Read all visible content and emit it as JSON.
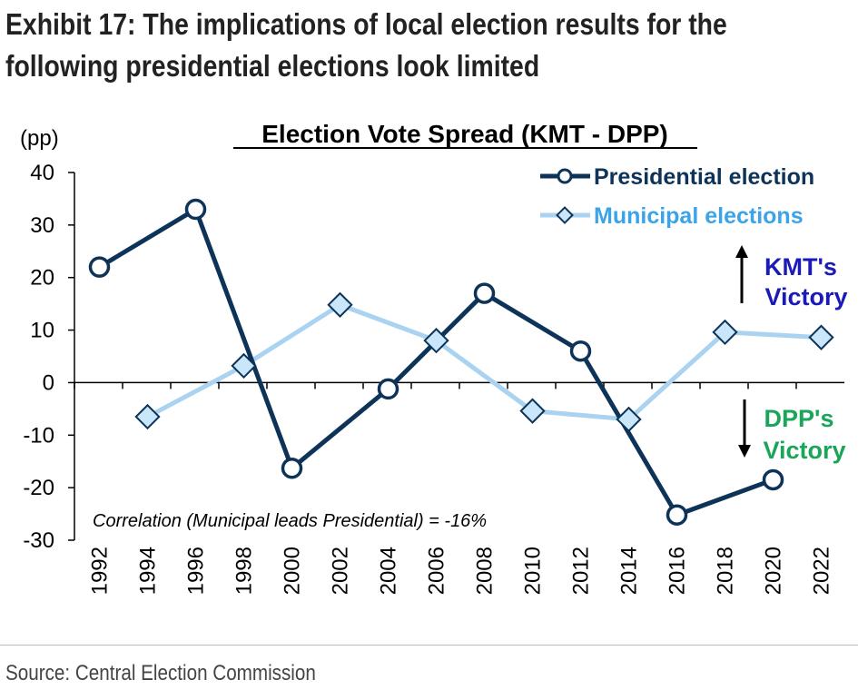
{
  "exhibit": {
    "title_line1": "Exhibit 17: The implications of local election results for the",
    "title_line2": "following presidential elections look limited",
    "source": "Source: Central Election Commission"
  },
  "chart_data": {
    "type": "line",
    "title": "Election Vote Spread (KMT - DPP)",
    "ylabel": "(pp)",
    "xlabel": "",
    "ylim": [
      -30,
      40
    ],
    "yticks": [
      40,
      30,
      20,
      10,
      0,
      -10,
      -20,
      -30
    ],
    "categories": [
      "1992",
      "1994",
      "1996",
      "1998",
      "2000",
      "2002",
      "2004",
      "2006",
      "2008",
      "2010",
      "2012",
      "2014",
      "2016",
      "2018",
      "2020",
      "2022"
    ],
    "legend_position": "top-right",
    "series": [
      {
        "name": "Presidential election",
        "color": "#0d3358",
        "marker": "circle",
        "points": [
          {
            "x": "1992",
            "y": 22
          },
          {
            "x": "1996",
            "y": 33
          },
          {
            "x": "2000",
            "y": -16.3
          },
          {
            "x": "2004",
            "y": -1.2
          },
          {
            "x": "2008",
            "y": 17
          },
          {
            "x": "2012",
            "y": 6
          },
          {
            "x": "2016",
            "y": -25.2
          },
          {
            "x": "2020",
            "y": -18.5
          }
        ]
      },
      {
        "name": "Municipal elections",
        "color": "#a9d3f0",
        "marker": "diamond",
        "points": [
          {
            "x": "1994",
            "y": -6.5
          },
          {
            "x": "1998",
            "y": 3.2
          },
          {
            "x": "2002",
            "y": 14.8
          },
          {
            "x": "2006",
            "y": 8
          },
          {
            "x": "2010",
            "y": -5.4
          },
          {
            "x": "2014",
            "y": -7
          },
          {
            "x": "2018",
            "y": 9.6
          },
          {
            "x": "2022",
            "y": 8.6
          }
        ]
      }
    ],
    "annotations": {
      "kmt_label_1": "KMT's",
      "kmt_label_2": "Victory",
      "kmt_color": "#1a1ab8",
      "dpp_label_1": "DPP's",
      "dpp_label_2": "Victory",
      "dpp_color": "#1aa55a",
      "correlation": "Correlation (Municipal leads Presidential) = -16%"
    }
  }
}
